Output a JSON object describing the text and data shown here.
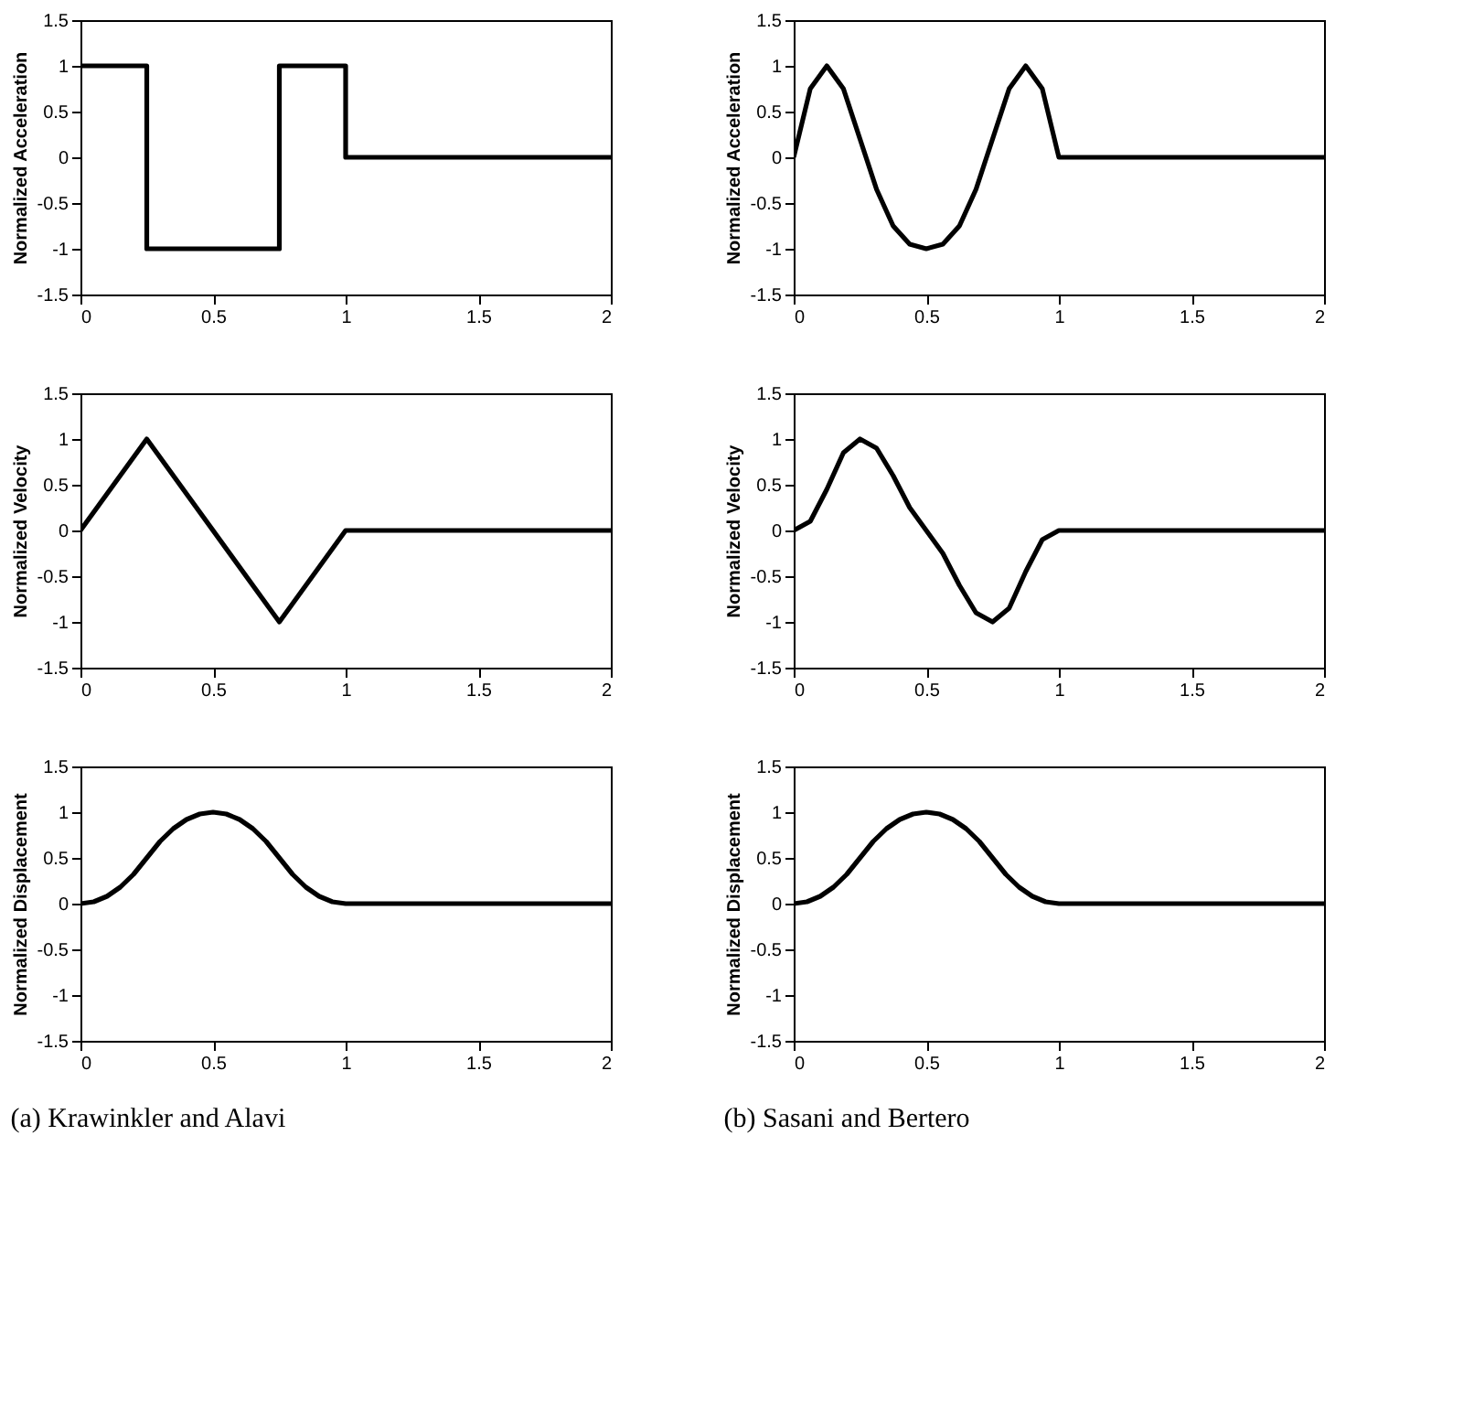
{
  "chart_data": [
    {
      "type": "line",
      "ylabel": "Normalized Acceleration",
      "xlim": [
        0,
        2
      ],
      "ylim": [
        -1.5,
        1.5
      ],
      "xticks": [
        0,
        0.5,
        1,
        1.5,
        2
      ],
      "yticks": [
        -1.5,
        -1,
        -0.5,
        0,
        0.5,
        1,
        1.5
      ],
      "grid": false,
      "series": [
        {
          "color": "#000000",
          "x": [
            0,
            0.25,
            0.25,
            0.75,
            0.75,
            1,
            1,
            2
          ],
          "values": [
            1,
            1,
            -1,
            -1,
            1,
            1,
            0,
            0
          ]
        }
      ]
    },
    {
      "type": "line",
      "ylabel": "Normalized Acceleration",
      "xlim": [
        0,
        2
      ],
      "ylim": [
        -1.5,
        1.5
      ],
      "xticks": [
        0,
        0.5,
        1,
        1.5,
        2
      ],
      "yticks": [
        -1.5,
        -1,
        -0.5,
        0,
        0.5,
        1,
        1.5
      ],
      "grid": false,
      "series": [
        {
          "color": "#000000",
          "x": [
            0,
            0.0625,
            0.125,
            0.1875,
            0.25,
            0.3125,
            0.375,
            0.4375,
            0.5,
            0.5625,
            0.625,
            0.6875,
            0.75,
            0.8125,
            0.875,
            0.9375,
            1,
            2
          ],
          "values": [
            0,
            0.75,
            1,
            0.75,
            0.2,
            -0.35,
            -0.75,
            -0.95,
            -1,
            -0.95,
            -0.75,
            -0.35,
            0.2,
            0.75,
            1,
            0.75,
            0,
            0
          ]
        }
      ]
    },
    {
      "type": "line",
      "ylabel": "Normalized Velocity",
      "xlim": [
        0,
        2
      ],
      "ylim": [
        -1.5,
        1.5
      ],
      "xticks": [
        0,
        0.5,
        1,
        1.5,
        2
      ],
      "yticks": [
        -1.5,
        -1,
        -0.5,
        0,
        0.5,
        1,
        1.5
      ],
      "grid": false,
      "series": [
        {
          "color": "#000000",
          "x": [
            0,
            0.25,
            0.75,
            1,
            2
          ],
          "values": [
            0,
            1,
            -1,
            0,
            0
          ]
        }
      ]
    },
    {
      "type": "line",
      "ylabel": "Normalized Velocity",
      "xlim": [
        0,
        2
      ],
      "ylim": [
        -1.5,
        1.5
      ],
      "xticks": [
        0,
        0.5,
        1,
        1.5,
        2
      ],
      "yticks": [
        -1.5,
        -1,
        -0.5,
        0,
        0.5,
        1,
        1.5
      ],
      "grid": false,
      "series": [
        {
          "color": "#000000",
          "x": [
            0,
            0.0625,
            0.125,
            0.1875,
            0.25,
            0.3125,
            0.375,
            0.4375,
            0.5,
            0.5625,
            0.625,
            0.6875,
            0.75,
            0.8125,
            0.875,
            0.9375,
            1,
            2
          ],
          "values": [
            0,
            0.1,
            0.45,
            0.85,
            1,
            0.9,
            0.6,
            0.25,
            0,
            -0.25,
            -0.6,
            -0.9,
            -1,
            -0.85,
            -0.45,
            -0.1,
            0,
            0
          ]
        }
      ]
    },
    {
      "type": "line",
      "ylabel": "Normalized Displacement",
      "xlim": [
        0,
        2
      ],
      "ylim": [
        -1.5,
        1.5
      ],
      "xticks": [
        0,
        0.5,
        1,
        1.5,
        2
      ],
      "yticks": [
        -1.5,
        -1,
        -0.5,
        0,
        0.5,
        1,
        1.5
      ],
      "grid": false,
      "annotations": [
        "(a) Krawinkler and Alavi"
      ],
      "series": [
        {
          "color": "#000000",
          "x": [
            0,
            0.05,
            0.1,
            0.15,
            0.2,
            0.25,
            0.3,
            0.35,
            0.4,
            0.45,
            0.5,
            0.55,
            0.6,
            0.65,
            0.7,
            0.75,
            0.8,
            0.85,
            0.9,
            0.95,
            1,
            2
          ],
          "values": [
            0,
            0.02,
            0.08,
            0.18,
            0.32,
            0.5,
            0.68,
            0.82,
            0.92,
            0.98,
            1,
            0.98,
            0.92,
            0.82,
            0.68,
            0.5,
            0.32,
            0.18,
            0.08,
            0.02,
            0,
            0
          ]
        }
      ]
    },
    {
      "type": "line",
      "ylabel": "Normalized Displacement",
      "xlim": [
        0,
        2
      ],
      "ylim": [
        -1.5,
        1.5
      ],
      "xticks": [
        0,
        0.5,
        1,
        1.5,
        2
      ],
      "yticks": [
        -1.5,
        -1,
        -0.5,
        0,
        0.5,
        1,
        1.5
      ],
      "grid": false,
      "annotations": [
        "(b) Sasani and Bertero"
      ],
      "series": [
        {
          "color": "#000000",
          "x": [
            0,
            0.05,
            0.1,
            0.15,
            0.2,
            0.25,
            0.3,
            0.35,
            0.4,
            0.45,
            0.5,
            0.55,
            0.6,
            0.65,
            0.7,
            0.75,
            0.8,
            0.85,
            0.9,
            0.95,
            1,
            2
          ],
          "values": [
            0,
            0.02,
            0.08,
            0.18,
            0.32,
            0.5,
            0.68,
            0.82,
            0.92,
            0.98,
            1,
            0.98,
            0.92,
            0.82,
            0.68,
            0.5,
            0.32,
            0.18,
            0.08,
            0.02,
            0,
            0
          ]
        }
      ]
    }
  ]
}
